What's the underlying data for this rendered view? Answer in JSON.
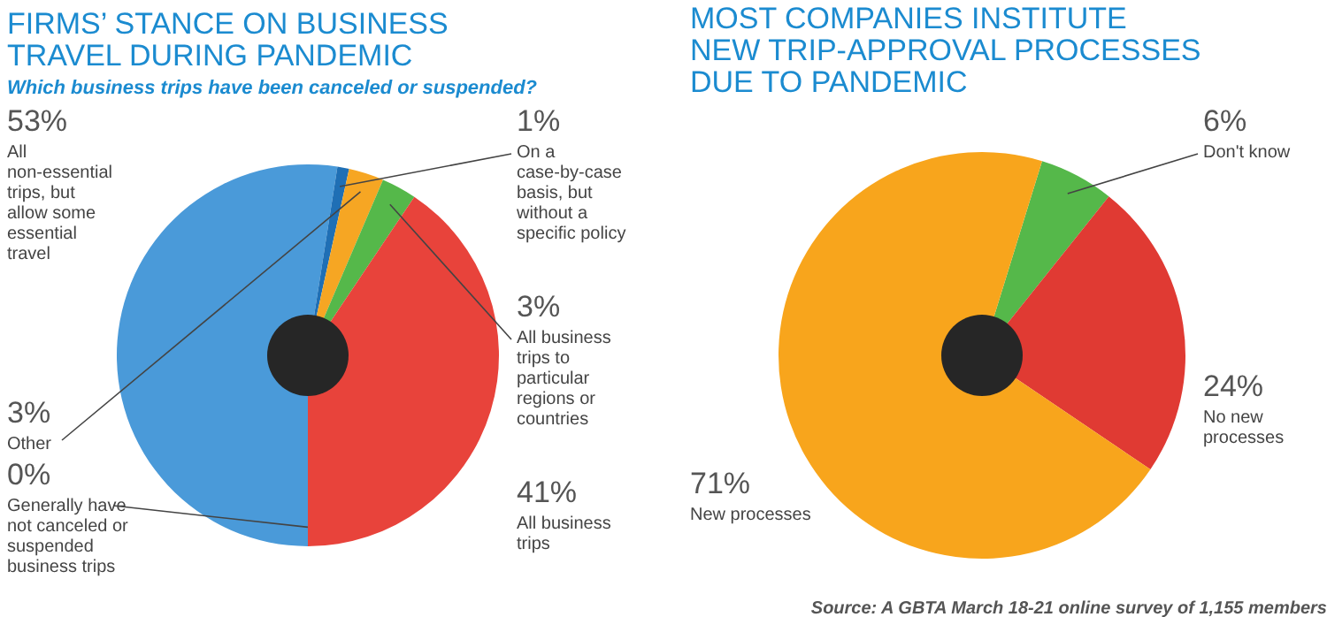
{
  "chart_data": [
    {
      "type": "donut",
      "title": "FIRMS’ STANCE ON BUSINESS TRAVEL DURING PANDEMIC",
      "subtitle": "Which business trips have been canceled or suspended?",
      "categories": [
        "All non-essential trips, but allow some essential travel",
        "On a case-by-case basis, but without a specific policy",
        "Other",
        "All business trips to particular regions or countries",
        "All business trips",
        "Generally have not canceled or suspended business trips"
      ],
      "values": [
        53,
        1,
        3,
        3,
        41,
        0
      ],
      "value_labels": [
        "53%",
        "1%",
        "3%",
        "3%",
        "41%",
        "0%"
      ],
      "colors": [
        "#4a9ad9",
        "#1f6fb5",
        "#f6a623",
        "#55b84a",
        "#e8433b",
        "#2a7fc8"
      ]
    },
    {
      "type": "donut",
      "title": "MOST COMPANIES INSTITUTE NEW TRIP-APPROVAL PROCESSES DUE TO PANDEMIC",
      "categories": [
        "Don't know",
        "No new processes",
        "New processes"
      ],
      "values": [
        6,
        24,
        71
      ],
      "value_labels": [
        "6%",
        "24%",
        "71%"
      ],
      "colors": [
        "#55b84a",
        "#e03a33",
        "#f8a51c"
      ],
      "annotations": [
        "Source: A GBTA March 18-21 online survey of 1,155 members"
      ]
    }
  ]
}
